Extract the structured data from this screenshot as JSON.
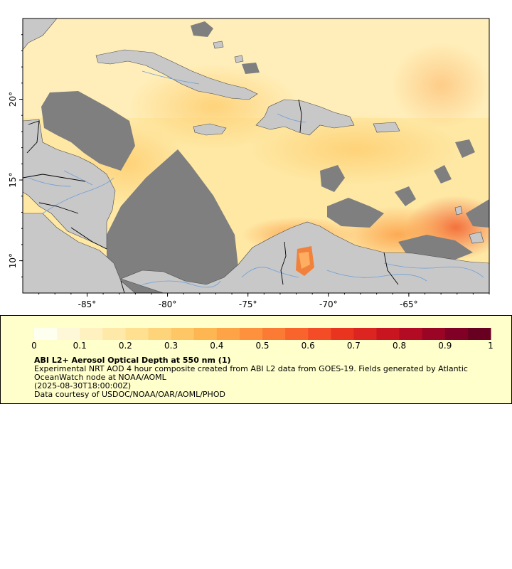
{
  "map": {
    "x_ticks": [
      {
        "lon": -85,
        "label": "-85°"
      },
      {
        "lon": -80,
        "label": "-80°"
      },
      {
        "lon": -75,
        "label": "-75°"
      },
      {
        "lon": -70,
        "label": "-70°"
      },
      {
        "lon": -65,
        "label": "-65°"
      }
    ],
    "y_ticks": [
      {
        "lat": 20,
        "label": "20°"
      },
      {
        "lat": 15,
        "label": "15°"
      },
      {
        "lat": 10,
        "label": "10°"
      }
    ],
    "lon_range": [
      -89,
      -60
    ],
    "lat_range": [
      8,
      25
    ],
    "colors": {
      "land": "#c8c8c8",
      "nodata": "#7f7f7f",
      "border": "#000000",
      "river": "#6f9fd8",
      "frame": "#000000"
    }
  },
  "colorbar": {
    "colors": [
      "#fffff0",
      "#fff8d8",
      "#fff1c0",
      "#ffe9a8",
      "#ffe090",
      "#fed47a",
      "#fec664",
      "#feb652",
      "#fea446",
      "#fd913e",
      "#fc7b34",
      "#f9642c",
      "#f34c26",
      "#e93520",
      "#dc2420",
      "#c8151f",
      "#b20b23",
      "#9a0526",
      "#800026",
      "#680022"
    ],
    "ticks": [
      "0",
      "0.1",
      "0.2",
      "0.3",
      "0.4",
      "0.5",
      "0.6",
      "0.7",
      "0.8",
      "0.9",
      "1"
    ]
  },
  "legend": {
    "title": "ABI L2+ Aerosol Optical Depth at 550 nm (1)",
    "description": "Experimental NRT AOD 4 hour composite created from ABI L2 data from GOES-19. Fields generated by Atlantic OceanWatch node at NOAA/AOML",
    "time": "(2025-08-30T18:00:00Z)",
    "credit": "Data courtesy of USDOC/NOAA/OAR/AOML/PHOD"
  }
}
